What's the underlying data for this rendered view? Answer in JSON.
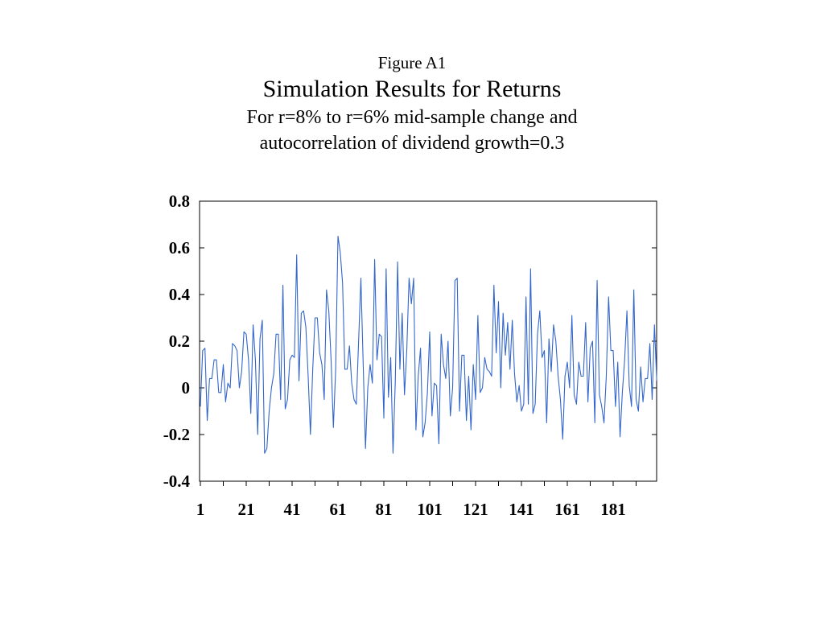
{
  "figure": {
    "label": "Figure A1",
    "title": "Simulation Results for Returns",
    "subtitle_line1": "For r=8% to r=6% mid-sample change and",
    "subtitle_line2": "autocorrelation of dividend growth=0.3"
  },
  "chart_data": {
    "type": "line",
    "title": "Simulation Results for Returns",
    "xlabel": "",
    "ylabel": "",
    "ylim": [
      -0.4,
      0.8
    ],
    "xlim": [
      1,
      200
    ],
    "grid": false,
    "legend": "none",
    "yticks": [
      0.8,
      0.6,
      0.4,
      0.2,
      0,
      -0.2,
      -0.4
    ],
    "ytick_labels": [
      "0.8",
      "0.6",
      "0.4",
      "0.2",
      "0",
      "-0.2",
      "-0.4"
    ],
    "xticks": [
      1,
      21,
      41,
      61,
      81,
      101,
      121,
      141,
      161,
      181
    ],
    "xtick_labels": [
      "1",
      "21",
      "41",
      "61",
      "81",
      "101",
      "121",
      "141",
      "161",
      "181"
    ],
    "series": [
      {
        "color": "#3366cc",
        "x_start": 1,
        "values": [
          -0.08,
          0.16,
          0.17,
          -0.14,
          0.04,
          0.04,
          0.12,
          0.12,
          -0.02,
          -0.02,
          0.1,
          -0.06,
          0.02,
          0.0,
          0.19,
          0.18,
          0.16,
          0.0,
          0.07,
          0.24,
          0.23,
          0.12,
          -0.11,
          0.27,
          0.12,
          -0.2,
          0.21,
          0.29,
          -0.28,
          -0.26,
          -0.1,
          0.0,
          0.06,
          0.23,
          0.23,
          -0.05,
          0.44,
          -0.09,
          -0.05,
          0.12,
          0.14,
          0.13,
          0.57,
          0.03,
          0.32,
          0.33,
          0.26,
          0.05,
          -0.2,
          0.08,
          0.3,
          0.3,
          0.15,
          0.1,
          -0.05,
          0.42,
          0.33,
          0.12,
          -0.17,
          0.08,
          0.65,
          0.58,
          0.45,
          0.08,
          0.08,
          0.18,
          0.02,
          -0.05,
          -0.07,
          0.2,
          0.47,
          0.1,
          -0.26,
          0.0,
          0.1,
          0.02,
          0.55,
          0.12,
          0.23,
          0.22,
          -0.13,
          0.51,
          -0.04,
          0.13,
          -0.28,
          0.03,
          0.54,
          0.08,
          0.32,
          -0.03,
          0.16,
          0.47,
          0.36,
          0.47,
          -0.18,
          0.05,
          0.17,
          -0.21,
          -0.15,
          -0.02,
          0.24,
          -0.12,
          0.02,
          0.01,
          -0.24,
          0.23,
          0.1,
          0.04,
          0.2,
          -0.12,
          0.0,
          0.46,
          0.47,
          -0.1,
          0.14,
          0.14,
          -0.14,
          0.05,
          -0.18,
          0.1,
          -0.05,
          0.31,
          -0.02,
          0.0,
          0.13,
          0.08,
          0.07,
          0.05,
          0.44,
          0.15,
          0.37,
          0.0,
          0.32,
          0.14,
          0.28,
          0.08,
          0.29,
          0.06,
          -0.06,
          0.01,
          -0.1,
          -0.07,
          0.39,
          -0.07,
          0.51,
          -0.11,
          -0.07,
          0.23,
          0.33,
          0.13,
          0.16,
          -0.15,
          0.21,
          0.07,
          0.27,
          0.2,
          0.05,
          -0.05,
          -0.22,
          0.05,
          0.11,
          0.0,
          0.31,
          -0.03,
          -0.07,
          0.11,
          0.05,
          0.05,
          0.28,
          -0.06,
          0.17,
          0.2,
          -0.15,
          0.46,
          -0.03,
          -0.08,
          -0.15,
          0.05,
          0.39,
          0.16,
          0.16,
          -0.08,
          0.11,
          -0.21,
          -0.02,
          0.12,
          0.33,
          0.01,
          -0.08,
          0.42,
          -0.05,
          -0.1,
          0.09,
          -0.06,
          0.04,
          0.04,
          0.19,
          -0.05,
          0.27,
          0.03
        ]
      }
    ]
  }
}
